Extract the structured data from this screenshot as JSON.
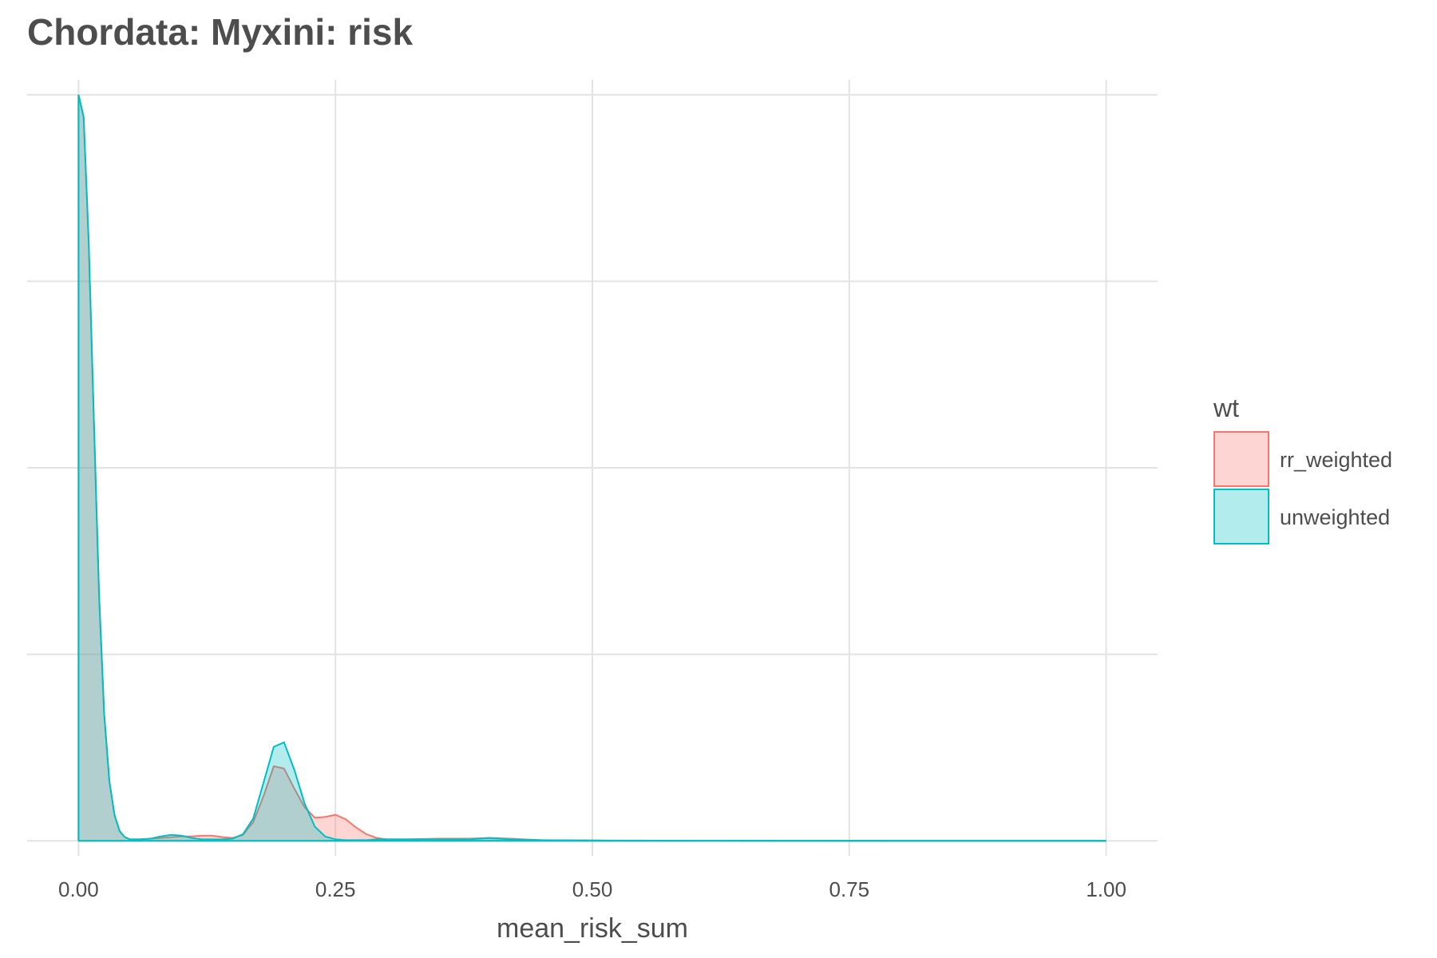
{
  "chart_data": {
    "type": "area",
    "title": "Chordata: Myxini: risk",
    "xlabel": "mean_risk_sum",
    "ylabel": "",
    "xlim": [
      -0.05,
      1.05
    ],
    "ylim": [
      -0.02,
      1.02
    ],
    "x_ticks": [
      0.0,
      0.25,
      0.5,
      0.75,
      1.0
    ],
    "x_tick_labels": [
      "0.00",
      "0.25",
      "0.50",
      "0.75",
      "1.00"
    ],
    "y_gridlines": [
      0.0,
      0.25,
      0.5,
      0.75,
      1.0
    ],
    "grid": true,
    "legend": {
      "title": "wt",
      "position": "right",
      "entries": [
        "rr_weighted",
        "unweighted"
      ]
    },
    "series": [
      {
        "name": "rr_weighted",
        "line_color": "#F8766D",
        "fill_color": "#F8766D",
        "x": [
          0.0,
          0.005,
          0.01,
          0.015,
          0.02,
          0.025,
          0.03,
          0.035,
          0.04,
          0.045,
          0.05,
          0.06,
          0.07,
          0.08,
          0.09,
          0.1,
          0.11,
          0.12,
          0.13,
          0.14,
          0.15,
          0.16,
          0.17,
          0.18,
          0.19,
          0.2,
          0.21,
          0.22,
          0.23,
          0.24,
          0.25,
          0.26,
          0.27,
          0.28,
          0.29,
          0.3,
          0.32,
          0.35,
          0.38,
          0.4,
          0.42,
          0.45,
          0.5,
          0.6,
          0.7,
          0.8,
          0.9,
          1.0
        ],
        "y": [
          1.0,
          0.97,
          0.8,
          0.56,
          0.33,
          0.17,
          0.08,
          0.035,
          0.013,
          0.005,
          0.002,
          0.002,
          0.003,
          0.004,
          0.005,
          0.006,
          0.006,
          0.007,
          0.007,
          0.005,
          0.004,
          0.008,
          0.025,
          0.06,
          0.1,
          0.097,
          0.07,
          0.045,
          0.031,
          0.032,
          0.035,
          0.029,
          0.018,
          0.009,
          0.004,
          0.002,
          0.002,
          0.003,
          0.003,
          0.004,
          0.003,
          0.001,
          0.0005,
          0.0003,
          0.0002,
          0.0001,
          0.0001,
          0.0
        ]
      },
      {
        "name": "unweighted",
        "line_color": "#00BFC4",
        "fill_color": "#00BFC4",
        "x": [
          0.0,
          0.005,
          0.01,
          0.015,
          0.02,
          0.025,
          0.03,
          0.035,
          0.04,
          0.045,
          0.05,
          0.06,
          0.07,
          0.08,
          0.09,
          0.1,
          0.11,
          0.12,
          0.13,
          0.14,
          0.15,
          0.16,
          0.17,
          0.18,
          0.19,
          0.2,
          0.21,
          0.22,
          0.23,
          0.24,
          0.25,
          0.26,
          0.27,
          0.28,
          0.29,
          0.3,
          0.32,
          0.35,
          0.38,
          0.4,
          0.42,
          0.45,
          0.5,
          0.6,
          0.7,
          0.8,
          0.9,
          1.0
        ],
        "y": [
          1.0,
          0.97,
          0.8,
          0.56,
          0.33,
          0.17,
          0.08,
          0.035,
          0.013,
          0.005,
          0.002,
          0.002,
          0.003,
          0.006,
          0.008,
          0.007,
          0.004,
          0.002,
          0.002,
          0.002,
          0.003,
          0.009,
          0.03,
          0.078,
          0.126,
          0.132,
          0.095,
          0.05,
          0.019,
          0.006,
          0.002,
          0.001,
          0.001,
          0.001,
          0.002,
          0.002,
          0.002,
          0.002,
          0.002,
          0.004,
          0.002,
          0.001,
          0.0005,
          0.0003,
          0.0002,
          0.0001,
          0.0001,
          0.0
        ]
      }
    ]
  }
}
